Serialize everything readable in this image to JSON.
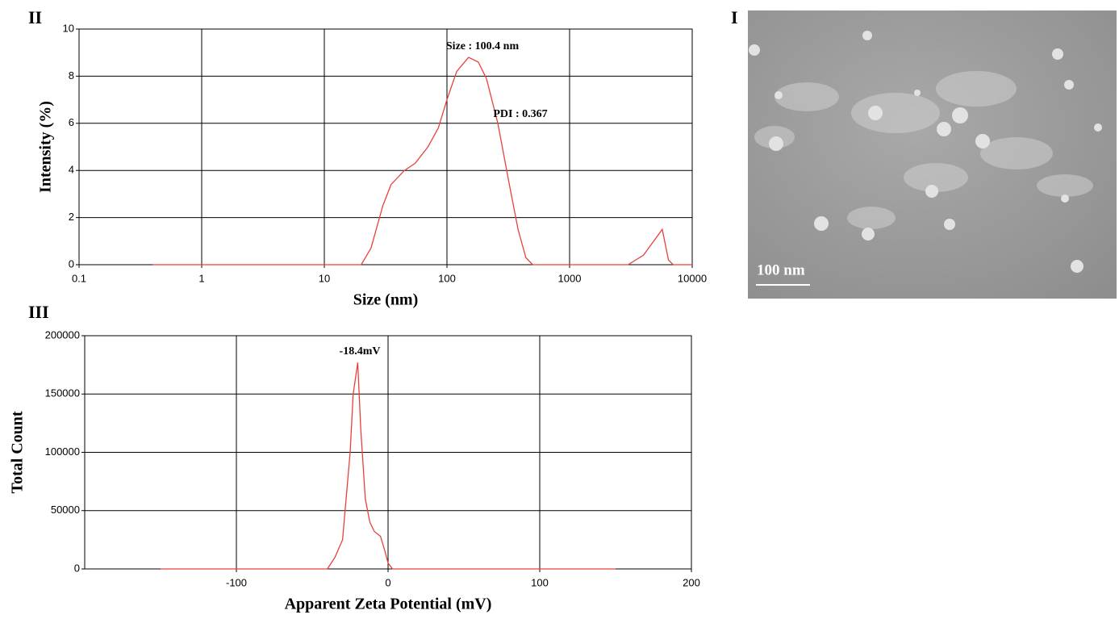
{
  "chart_data": [
    {
      "type": "line",
      "label": "II",
      "xlabel": "Size (nm)",
      "ylabel": "Intensity (%)",
      "xscale": "log",
      "xlim": [
        0.1,
        10000
      ],
      "xticks": [
        0.1,
        1,
        10,
        100,
        1000,
        10000
      ],
      "ylim": [
        0,
        10
      ],
      "yticks": [
        0,
        2,
        4,
        6,
        8,
        10
      ],
      "grid": true,
      "x": [
        0.4,
        20,
        24,
        30,
        35,
        45,
        55,
        70,
        85,
        100,
        120,
        150,
        180,
        210,
        260,
        320,
        380,
        440,
        500,
        3000,
        4000,
        5700,
        6400,
        7000,
        10000
      ],
      "series": [
        {
          "color": "#e8413c",
          "values": [
            0,
            0,
            0.7,
            2.5,
            3.4,
            4.0,
            4.3,
            5.0,
            5.8,
            7.0,
            8.2,
            8.8,
            8.6,
            7.9,
            6.0,
            3.5,
            1.5,
            0.3,
            0,
            0,
            0.4,
            1.5,
            0.2,
            0,
            0
          ]
        }
      ],
      "annotations": [
        "Size : 100.4 nm",
        "PDI : 0.367"
      ]
    },
    {
      "type": "line",
      "label": "III",
      "xlabel": "Apparent Zeta Potential (mV)",
      "ylabel": "Total Count",
      "xlim": [
        -200,
        200
      ],
      "xticks": [
        -100,
        0,
        100,
        200
      ],
      "ylim": [
        0,
        200000
      ],
      "yticks": [
        0,
        50000,
        100000,
        150000,
        200000
      ],
      "grid": true,
      "x": [
        -150,
        -40,
        -35,
        -30,
        -25,
        -23,
        -20,
        -18,
        -15,
        -12,
        -9,
        -5,
        -2,
        0,
        3,
        150
      ],
      "series": [
        {
          "color": "#e8413c",
          "values": [
            0,
            0,
            10000,
            25000,
            100000,
            150000,
            177000,
            120000,
            60000,
            40000,
            32000,
            28000,
            15000,
            5000,
            0,
            0
          ]
        }
      ],
      "annotations": [
        "-18.4mV"
      ]
    }
  ],
  "image": {
    "label": "I",
    "scale_bar": "100 nm"
  }
}
